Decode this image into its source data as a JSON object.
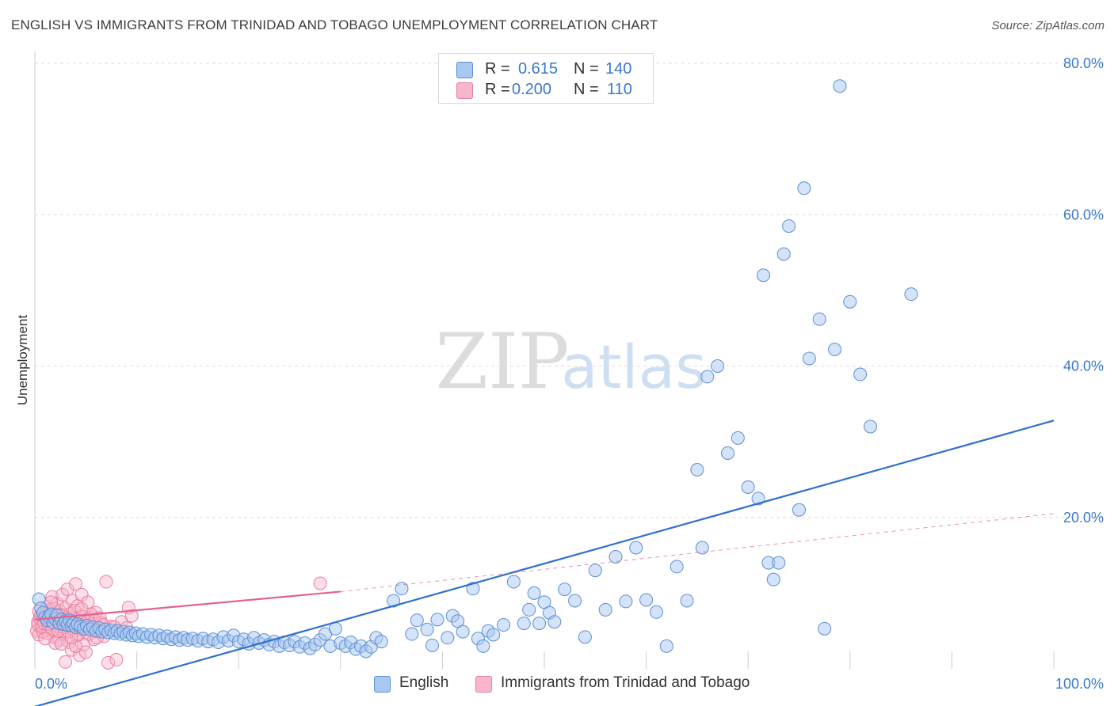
{
  "header": {
    "title": "ENGLISH VS IMMIGRANTS FROM TRINIDAD AND TOBAGO UNEMPLOYMENT CORRELATION CHART",
    "source": "Source: ZipAtlas.com"
  },
  "legend_top": {
    "rows": [
      {
        "r_label": "R =",
        "r_value": "0.615",
        "n_label": "N =",
        "n_value": "140"
      },
      {
        "r_label": "R =",
        "r_value": "0.200",
        "n_label": "N =",
        "n_value": "110"
      }
    ]
  },
  "legend_bottom": {
    "english": "English",
    "immigrants": "Immigrants from Trinidad and Tobago"
  },
  "watermark": {
    "zip": "ZIP",
    "atlas": "atlas"
  },
  "colors": {
    "english_fill": "#a9c8ef",
    "english_stroke": "#5b8fd6",
    "english_line": "#2f6fcf",
    "trinidad_fill": "#f7b6c9",
    "trinidad_stroke": "#ea7ea0",
    "trinidad_line": "#e5618d",
    "grid": "#dddddd",
    "axis_text": "#3a78c9"
  },
  "chart_data": {
    "type": "scatter",
    "xlabel": "",
    "ylabel": "Unemployment",
    "xlim": [
      0,
      100
    ],
    "ylim": [
      0,
      80
    ],
    "x_tick_labels": [
      {
        "value": 0,
        "label": "0.0%"
      },
      {
        "value": 100,
        "label": "100.0%"
      }
    ],
    "y_tick_labels": [
      {
        "value": 20,
        "label": "20.0%"
      },
      {
        "value": 40,
        "label": "40.0%"
      },
      {
        "value": 60,
        "label": "60.0%"
      },
      {
        "value": 80,
        "label": "80.0%"
      }
    ],
    "grid": true,
    "legend_position": "bottom",
    "series": [
      {
        "name": "English",
        "r": 0.615,
        "n": 140,
        "trend": [
          [
            0,
            -5.0
          ],
          [
            100,
            32.8
          ]
        ],
        "points": [
          [
            0.4,
            9.2
          ],
          [
            0.6,
            8.0
          ],
          [
            0.8,
            7.4
          ],
          [
            1.0,
            6.8
          ],
          [
            1.2,
            6.4
          ],
          [
            1.4,
            6.9
          ],
          [
            1.6,
            7.2
          ],
          [
            1.8,
            6.1
          ],
          [
            2.0,
            6.6
          ],
          [
            2.2,
            7.1
          ],
          [
            2.4,
            6.0
          ],
          [
            2.6,
            6.5
          ],
          [
            2.8,
            5.9
          ],
          [
            3.0,
            6.3
          ],
          [
            3.2,
            5.8
          ],
          [
            3.4,
            6.4
          ],
          [
            3.6,
            5.7
          ],
          [
            3.8,
            6.0
          ],
          [
            4.0,
            5.5
          ],
          [
            4.2,
            5.9
          ],
          [
            4.5,
            5.6
          ],
          [
            4.8,
            5.3
          ],
          [
            5.1,
            5.7
          ],
          [
            5.4,
            5.2
          ],
          [
            5.7,
            5.5
          ],
          [
            6.0,
            5.0
          ],
          [
            6.3,
            5.4
          ],
          [
            6.6,
            4.9
          ],
          [
            6.9,
            5.2
          ],
          [
            7.2,
            4.8
          ],
          [
            7.5,
            5.1
          ],
          [
            7.8,
            4.7
          ],
          [
            8.1,
            5.0
          ],
          [
            8.4,
            4.6
          ],
          [
            8.7,
            4.9
          ],
          [
            9.0,
            4.5
          ],
          [
            9.3,
            4.8
          ],
          [
            9.6,
            4.4
          ],
          [
            9.9,
            4.7
          ],
          [
            10.2,
            4.3
          ],
          [
            10.6,
            4.6
          ],
          [
            11.0,
            4.2
          ],
          [
            11.4,
            4.5
          ],
          [
            11.8,
            4.1
          ],
          [
            12.2,
            4.4
          ],
          [
            12.6,
            4.0
          ],
          [
            13.0,
            4.3
          ],
          [
            13.4,
            3.9
          ],
          [
            13.8,
            4.2
          ],
          [
            14.2,
            3.8
          ],
          [
            14.6,
            4.1
          ],
          [
            15.0,
            3.8
          ],
          [
            15.5,
            4.0
          ],
          [
            16.0,
            3.7
          ],
          [
            16.5,
            4.0
          ],
          [
            17.0,
            3.6
          ],
          [
            17.5,
            3.9
          ],
          [
            18.0,
            3.5
          ],
          [
            18.5,
            4.2
          ],
          [
            19.0,
            3.7
          ],
          [
            19.5,
            4.4
          ],
          [
            20.0,
            3.6
          ],
          [
            20.5,
            3.9
          ],
          [
            21.0,
            3.3
          ],
          [
            21.5,
            4.1
          ],
          [
            22.0,
            3.4
          ],
          [
            22.5,
            3.8
          ],
          [
            23.0,
            3.2
          ],
          [
            23.5,
            3.6
          ],
          [
            24.0,
            3.0
          ],
          [
            24.5,
            3.5
          ],
          [
            25.0,
            3.1
          ],
          [
            25.5,
            3.6
          ],
          [
            26.0,
            2.9
          ],
          [
            26.5,
            3.4
          ],
          [
            27.0,
            2.7
          ],
          [
            27.5,
            3.2
          ],
          [
            28.0,
            3.8
          ],
          [
            28.5,
            4.6
          ],
          [
            29.0,
            3.0
          ],
          [
            29.5,
            5.3
          ],
          [
            30.0,
            3.4
          ],
          [
            30.5,
            3.0
          ],
          [
            31.0,
            3.5
          ],
          [
            31.5,
            2.6
          ],
          [
            32.0,
            3.0
          ],
          [
            32.5,
            2.3
          ],
          [
            33.0,
            2.9
          ],
          [
            33.5,
            4.1
          ],
          [
            34.0,
            3.6
          ],
          [
            35.2,
            9.0
          ],
          [
            36.0,
            10.6
          ],
          [
            37.0,
            4.6
          ],
          [
            37.5,
            6.4
          ],
          [
            38.5,
            5.2
          ],
          [
            39.0,
            3.1
          ],
          [
            39.5,
            6.5
          ],
          [
            40.5,
            4.1
          ],
          [
            41.0,
            7.0
          ],
          [
            41.5,
            6.3
          ],
          [
            42.0,
            4.9
          ],
          [
            43.0,
            10.6
          ],
          [
            43.5,
            4.0
          ],
          [
            44.0,
            3.0
          ],
          [
            44.5,
            5.0
          ],
          [
            45.0,
            4.5
          ],
          [
            46.0,
            5.8
          ],
          [
            47.0,
            11.5
          ],
          [
            48.0,
            6.0
          ],
          [
            48.5,
            7.8
          ],
          [
            49.0,
            10.0
          ],
          [
            49.5,
            6.0
          ],
          [
            50.0,
            8.8
          ],
          [
            50.5,
            7.4
          ],
          [
            51.0,
            6.2
          ],
          [
            52.0,
            10.5
          ],
          [
            53.0,
            9.0
          ],
          [
            54.0,
            4.2
          ],
          [
            55.0,
            13.0
          ],
          [
            56.0,
            7.8
          ],
          [
            57.0,
            14.8
          ],
          [
            58.0,
            8.9
          ],
          [
            59.0,
            16.0
          ],
          [
            60.0,
            9.1
          ],
          [
            61.0,
            7.5
          ],
          [
            62.0,
            3.0
          ],
          [
            63.0,
            13.5
          ],
          [
            64.0,
            9.0
          ],
          [
            65.0,
            26.3
          ],
          [
            65.5,
            16.0
          ],
          [
            66.0,
            38.6
          ],
          [
            67.0,
            40.0
          ],
          [
            68.0,
            28.5
          ],
          [
            69.0,
            30.5
          ],
          [
            70.0,
            24.0
          ],
          [
            71.0,
            22.5
          ],
          [
            71.5,
            52.0
          ],
          [
            72.0,
            14.0
          ],
          [
            72.5,
            11.8
          ],
          [
            73.0,
            14.0
          ],
          [
            73.5,
            54.8
          ],
          [
            74.0,
            58.5
          ],
          [
            75.0,
            21.0
          ],
          [
            75.5,
            63.5
          ],
          [
            76.0,
            41.0
          ],
          [
            77.0,
            46.2
          ],
          [
            77.5,
            5.3
          ],
          [
            78.5,
            42.2
          ],
          [
            79.0,
            77.0
          ],
          [
            80.0,
            48.5
          ],
          [
            81.0,
            38.9
          ],
          [
            82.0,
            32.0
          ],
          [
            86.0,
            49.5
          ]
        ]
      },
      {
        "name": "Immigrants from Trinidad and Tobago",
        "r": 0.2,
        "n": 110,
        "trend": [
          [
            0,
            6.5
          ],
          [
            30,
            10.2
          ]
        ],
        "trend_dashed": [
          [
            30,
            10.2
          ],
          [
            100,
            20.5
          ]
        ],
        "points": [
          [
            0.2,
            5.0
          ],
          [
            0.3,
            6.2
          ],
          [
            0.4,
            4.5
          ],
          [
            0.5,
            7.0
          ],
          [
            0.6,
            5.6
          ],
          [
            0.7,
            6.8
          ],
          [
            0.8,
            4.9
          ],
          [
            0.9,
            7.5
          ],
          [
            1.0,
            5.3
          ],
          [
            1.1,
            6.5
          ],
          [
            1.2,
            8.2
          ],
          [
            1.3,
            4.7
          ],
          [
            1.4,
            6.0
          ],
          [
            1.5,
            7.8
          ],
          [
            1.6,
            5.4
          ],
          [
            1.7,
            9.5
          ],
          [
            1.8,
            6.6
          ],
          [
            1.9,
            4.2
          ],
          [
            2.0,
            7.2
          ],
          [
            2.1,
            5.8
          ],
          [
            2.2,
            8.6
          ],
          [
            2.3,
            6.3
          ],
          [
            2.4,
            3.8
          ],
          [
            2.5,
            7.6
          ],
          [
            2.6,
            5.1
          ],
          [
            2.7,
            9.8
          ],
          [
            2.8,
            6.9
          ],
          [
            2.9,
            4.6
          ],
          [
            3.0,
            8.0
          ],
          [
            3.1,
            5.7
          ],
          [
            3.2,
            10.5
          ],
          [
            3.3,
            6.1
          ],
          [
            3.4,
            3.5
          ],
          [
            3.5,
            7.3
          ],
          [
            3.6,
            2.5
          ],
          [
            3.7,
            9.0
          ],
          [
            3.8,
            5.0
          ],
          [
            3.9,
            6.7
          ],
          [
            4.0,
            11.2
          ],
          [
            4.1,
            4.4
          ],
          [
            4.2,
            8.3
          ],
          [
            4.3,
            5.9
          ],
          [
            4.4,
            1.8
          ],
          [
            4.5,
            7.0
          ],
          [
            4.6,
            9.8
          ],
          [
            4.7,
            5.2
          ],
          [
            4.8,
            3.2
          ],
          [
            4.9,
            6.4
          ],
          [
            5.0,
            4.8
          ],
          [
            5.2,
            8.8
          ],
          [
            5.4,
            5.5
          ],
          [
            5.6,
            6.8
          ],
          [
            5.8,
            3.9
          ],
          [
            6.0,
            7.4
          ],
          [
            6.2,
            5.0
          ],
          [
            6.5,
            6.1
          ],
          [
            6.8,
            4.3
          ],
          [
            7.0,
            11.5
          ],
          [
            7.2,
            0.8
          ],
          [
            7.5,
            5.6
          ],
          [
            8.0,
            1.2
          ],
          [
            8.5,
            6.2
          ],
          [
            9.0,
            5.4
          ],
          [
            9.5,
            7.0
          ],
          [
            0.3,
            5.8
          ],
          [
            0.5,
            6.6
          ],
          [
            0.7,
            5.5
          ],
          [
            0.9,
            6.0
          ],
          [
            1.1,
            7.3
          ],
          [
            1.3,
            5.9
          ],
          [
            1.5,
            6.4
          ],
          [
            1.7,
            5.2
          ],
          [
            1.9,
            7.9
          ],
          [
            2.1,
            6.3
          ],
          [
            2.3,
            5.0
          ],
          [
            2.5,
            6.2
          ],
          [
            2.7,
            7.1
          ],
          [
            2.9,
            5.5
          ],
          [
            3.1,
            6.6
          ],
          [
            3.3,
            4.9
          ],
          [
            3.5,
            6.0
          ],
          [
            3.7,
            5.3
          ],
          [
            3.9,
            7.7
          ],
          [
            4.1,
            6.5
          ],
          [
            4.3,
            4.5
          ],
          [
            4.5,
            5.8
          ],
          [
            4.7,
            6.9
          ],
          [
            4.9,
            5.3
          ],
          [
            5.1,
            6.2
          ],
          [
            5.3,
            4.6
          ],
          [
            5.5,
            7.2
          ],
          [
            5.7,
            5.9
          ],
          [
            5.9,
            6.4
          ],
          [
            6.1,
            4.1
          ],
          [
            6.4,
            6.7
          ],
          [
            6.7,
            5.8
          ],
          [
            3.0,
            0.9
          ],
          [
            5.0,
            2.2
          ],
          [
            2.0,
            3.4
          ],
          [
            4.0,
            3.0
          ],
          [
            1.0,
            4.0
          ],
          [
            6.0,
            5.2
          ],
          [
            7.8,
            5.5
          ],
          [
            0.4,
            7.6
          ],
          [
            1.6,
            8.8
          ],
          [
            2.6,
            3.3
          ],
          [
            3.6,
            4.2
          ],
          [
            4.6,
            7.9
          ],
          [
            28.0,
            11.3
          ],
          [
            9.2,
            8.1
          ]
        ]
      }
    ]
  }
}
